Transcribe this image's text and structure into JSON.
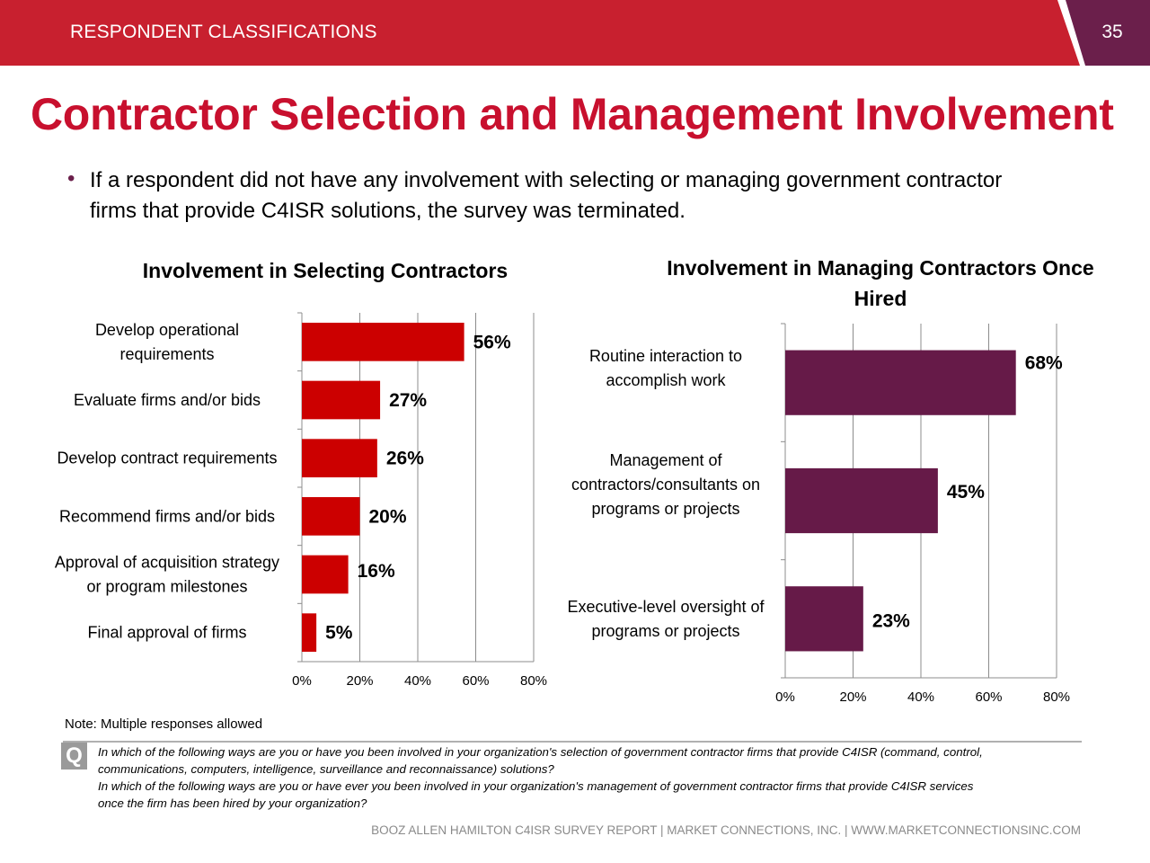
{
  "header": {
    "section": "RESPONDENT CLASSIFICATIONS",
    "page_number": "35",
    "colors": {
      "bar": "#c8202f",
      "tab": "#6b1f4b"
    }
  },
  "title": "Contractor Selection and Management Involvement",
  "bullet": "If a respondent did not have any involvement with selecting or managing government contractor firms that provide C4ISR solutions, the survey was terminated.",
  "chart_data": [
    {
      "type": "bar",
      "orientation": "horizontal",
      "title": "Involvement in Selecting Contractors",
      "categories": [
        [
          "Develop operational",
          "requirements"
        ],
        [
          "Evaluate firms and/or bids"
        ],
        [
          "Develop contract requirements"
        ],
        [
          "Recommend firms and/or bids"
        ],
        [
          "Approval of acquisition strategy",
          "or program milestones"
        ],
        [
          "Final approval of firms"
        ]
      ],
      "values": [
        56,
        27,
        26,
        20,
        16,
        5
      ],
      "data_labels": [
        "56%",
        "27%",
        "26%",
        "20%",
        "16%",
        "5%"
      ],
      "xlim": [
        0,
        80
      ],
      "x_ticks": [
        "0%",
        "20%",
        "40%",
        "60%",
        "80%"
      ],
      "grid": true,
      "color": "#cc0000"
    },
    {
      "type": "bar",
      "orientation": "horizontal",
      "title": "Involvement in Managing Contractors Once Hired",
      "categories": [
        [
          "Routine interaction to",
          "accomplish work"
        ],
        [
          "Management of",
          "contractors/consultants on",
          "programs or projects"
        ],
        [
          "Executive-level oversight of",
          "programs or projects"
        ]
      ],
      "values": [
        68,
        45,
        23
      ],
      "data_labels": [
        "68%",
        "45%",
        "23%"
      ],
      "xlim": [
        0,
        80
      ],
      "x_ticks": [
        "0%",
        "20%",
        "40%",
        "60%",
        "80%"
      ],
      "grid": true,
      "color": "#661a48"
    }
  ],
  "note": "Note: Multiple responses allowed",
  "question": {
    "icon": "Q",
    "lines": [
      "In which of the following ways are you or have you been involved in your organization's selection of government contractor firms that provide C4ISR (command, control,",
      "communications, computers, intelligence, surveillance and reconnaissance) solutions?",
      "In which of the following ways are you or have ever you been involved in your organization's management of government contractor firms that provide C4ISR services",
      "once the firm has been hired by your organization?"
    ]
  },
  "footer": "BOOZ ALLEN HAMILTON C4ISR SURVEY REPORT   |   MARKET CONNECTIONS, INC.  |  WWW.MARKETCONNECTIONSINC.COM"
}
